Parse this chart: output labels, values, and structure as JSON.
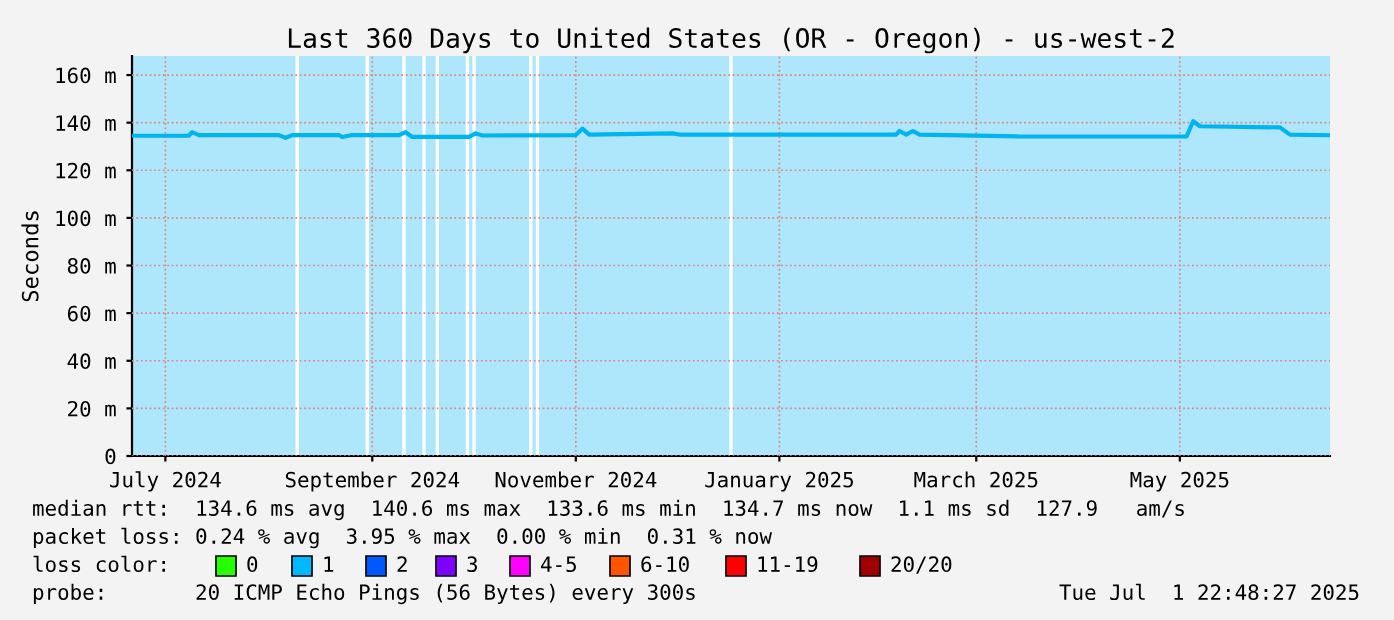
{
  "chart_data": {
    "type": "line",
    "title": "Last 360 Days to United States (OR - Oregon) - us-west-2",
    "ylabel": "Seconds",
    "x": [
      "2024-06-21",
      "2024-07-08",
      "2024-07-09",
      "2024-07-11",
      "2024-08-04",
      "2024-08-06",
      "2024-08-08",
      "2024-08-22",
      "2024-08-23",
      "2024-08-26",
      "2024-09-09",
      "2024-09-11",
      "2024-09-13",
      "2024-09-30",
      "2024-10-02",
      "2024-10-04",
      "2024-11-01",
      "2024-11-03",
      "2024-11-05",
      "2024-11-30",
      "2024-12-02",
      "2025-02-05",
      "2025-02-06",
      "2025-02-08",
      "2025-02-10",
      "2025-02-12",
      "2025-03-14",
      "2025-05-03",
      "2025-05-05",
      "2025-05-07",
      "2025-05-31",
      "2025-06-03",
      "2025-06-15"
    ],
    "series": [
      {
        "color": "#00b4f0",
        "values": [
          134.5,
          134.5,
          136,
          134.8,
          134.8,
          133.6,
          134.8,
          134.8,
          134,
          134.8,
          134.8,
          136,
          134,
          134,
          135.5,
          134.6,
          134.8,
          137.5,
          135,
          135.5,
          135,
          135,
          136.5,
          135,
          136.5,
          135,
          134.2,
          134.2,
          140.6,
          138.5,
          138,
          135,
          134.7
        ]
      }
    ],
    "xlim": [
      "2024-06-21",
      "2025-06-15"
    ],
    "xticks": [
      {
        "value": "2024-07-01",
        "label": "July 2024"
      },
      {
        "value": "2024-09-01",
        "label": "September 2024"
      },
      {
        "value": "2024-11-01",
        "label": "November 2024"
      },
      {
        "value": "2025-01-01",
        "label": "January 2025"
      },
      {
        "value": "2025-03-01",
        "label": "March 2025"
      },
      {
        "value": "2025-05-01",
        "label": "May 2025"
      }
    ],
    "ylim": [
      0,
      168
    ],
    "yticks": [
      {
        "value": 0,
        "label": "0"
      },
      {
        "value": 20,
        "label": "20 m"
      },
      {
        "value": 40,
        "label": "40 m"
      },
      {
        "value": 60,
        "label": "60 m"
      },
      {
        "value": 80,
        "label": "80 m"
      },
      {
        "value": 100,
        "label": "100 m"
      },
      {
        "value": 120,
        "label": "120 m"
      },
      {
        "value": 140,
        "label": "140 m"
      },
      {
        "value": 160,
        "label": "160 m"
      }
    ],
    "bands": [
      {
        "axis": "x",
        "from": "2024-08-09",
        "to": "2024-08-10",
        "color": "#ffffff"
      },
      {
        "axis": "x",
        "from": "2024-08-30",
        "to": "2024-08-31",
        "color": "#ffffff"
      },
      {
        "axis": "x",
        "from": "2024-09-10",
        "to": "2024-09-11",
        "color": "#ffffff"
      },
      {
        "axis": "x",
        "from": "2024-09-16",
        "to": "2024-09-17",
        "color": "#ffffff"
      },
      {
        "axis": "x",
        "from": "2024-09-20",
        "to": "2024-09-21",
        "color": "#ffffff"
      },
      {
        "axis": "x",
        "from": "2024-09-29",
        "to": "2024-09-30",
        "color": "#ffffff"
      },
      {
        "axis": "x",
        "from": "2024-10-01",
        "to": "2024-10-02",
        "color": "#ffffff"
      },
      {
        "axis": "x",
        "from": "2024-10-18",
        "to": "2024-10-19",
        "color": "#ffffff"
      },
      {
        "axis": "x",
        "from": "2024-10-20",
        "to": "2024-10-21",
        "color": "#ffffff"
      },
      {
        "axis": "x",
        "from": "2024-12-17",
        "to": "2024-12-18",
        "color": "#ffffff"
      }
    ],
    "grid": true,
    "legend": false,
    "annotations": [
      "median rtt:  134.6 ms avg  140.6 ms max  133.6 ms min  134.7 ms now  1.1 ms sd  127.9   am/s",
      "packet loss: 0.24 % avg  3.95 % max  0.00 % min  0.31 % now",
      "loss color:",
      "0",
      "1",
      "2",
      "3",
      "4-5",
      "6-10",
      "11-19",
      "20/20",
      "probe:       20 ICMP Echo Pings (56 Bytes) every 300s",
      "Tue Jul  1 22:48:27 2025"
    ]
  }
}
